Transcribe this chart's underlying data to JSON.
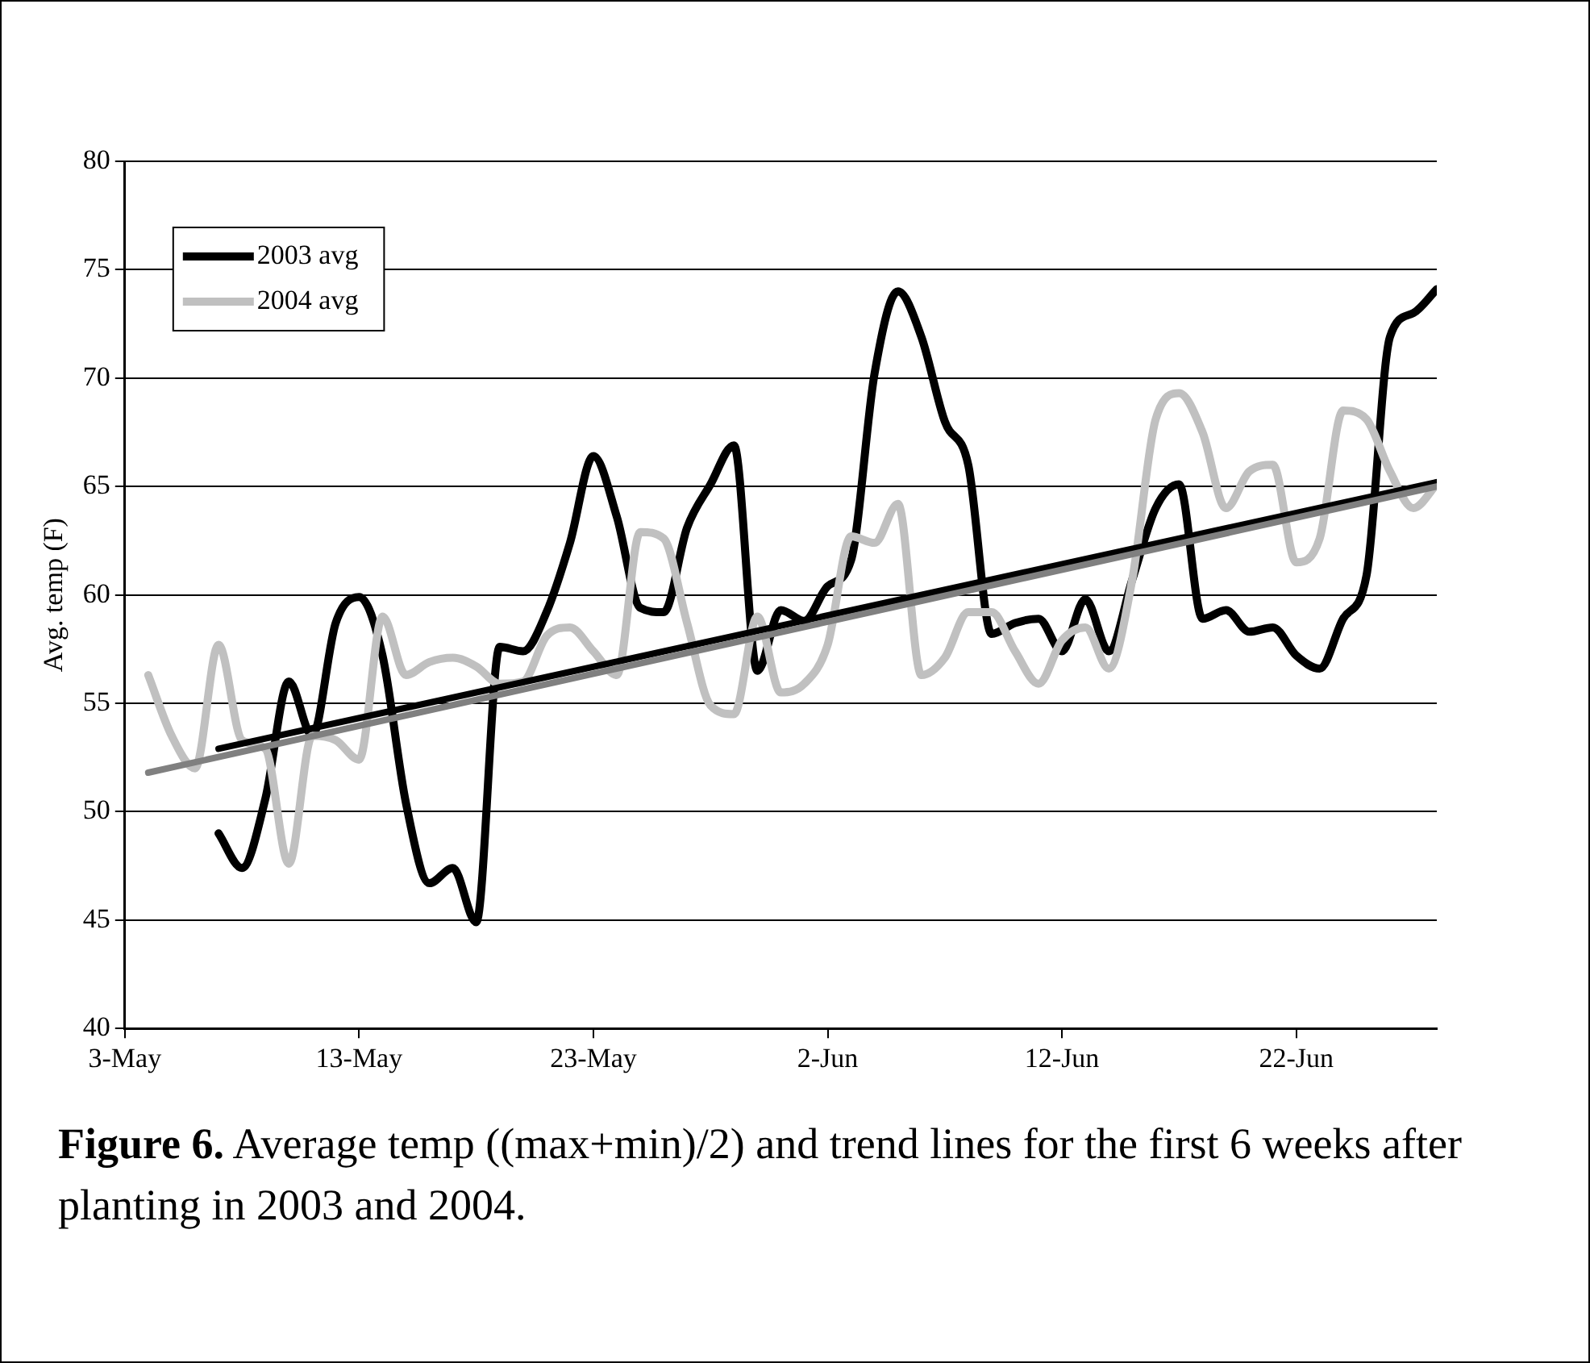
{
  "chart_data": {
    "type": "line",
    "ylabel": "Avg. temp (F)",
    "annotations": [
      "Figure 6. Average temp ((max+min)/2) and trend lines for the first 6 weeks after planting in 2003 and 2004."
    ],
    "xlim": [
      "--05-03",
      "--06-28"
    ],
    "xticks": [
      {
        "value": "--05-03",
        "label": "3-May"
      },
      {
        "value": "--05-13",
        "label": "13-May"
      },
      {
        "value": "--05-23",
        "label": "23-May"
      },
      {
        "value": "--06-02",
        "label": "2-Jun"
      },
      {
        "value": "--06-12",
        "label": "12-Jun"
      },
      {
        "value": "--06-22",
        "label": "22-Jun"
      }
    ],
    "ylim": [
      40,
      80
    ],
    "yticks": [
      40,
      45,
      50,
      55,
      60,
      65,
      70,
      75,
      80
    ],
    "grid": "y",
    "legend": "top left",
    "marker": "none",
    "line_style": "solid",
    "series": [
      {
        "name": "2003 avg",
        "color": "#000000",
        "x": [
          "--05-07",
          "--05-08",
          "--05-09",
          "--05-10",
          "--05-11",
          "--05-12",
          "--05-13",
          "--05-14",
          "--05-15",
          "--05-16",
          "--05-17",
          "--05-18",
          "--05-19",
          "--05-20",
          "--05-21",
          "--05-22",
          "--05-23",
          "--05-24",
          "--05-25",
          "--05-26",
          "--05-27",
          "--05-28",
          "--05-29",
          "--05-30",
          "--05-31",
          "--06-01",
          "--06-02",
          "--06-03",
          "--06-04",
          "--06-05",
          "--06-06",
          "--06-07",
          "--06-08",
          "--06-09",
          "--06-10",
          "--06-11",
          "--06-12",
          "--06-13",
          "--06-14",
          "--06-15",
          "--06-16",
          "--06-17",
          "--06-18",
          "--06-19",
          "--06-20",
          "--06-21",
          "--06-22",
          "--06-23",
          "--06-24",
          "--06-25",
          "--06-26",
          "--06-27",
          "--06-28"
        ],
        "values": [
          49.0,
          47.4,
          50.6,
          56.0,
          53.5,
          58.7,
          59.9,
          57.2,
          50.4,
          46.7,
          47.4,
          44.9,
          57.6,
          57.4,
          59.2,
          62.4,
          66.4,
          63.6,
          59.4,
          59.2,
          63.1,
          65.1,
          66.9,
          56.5,
          59.3,
          58.8,
          60.4,
          61.6,
          70.2,
          74.0,
          71.9,
          68.0,
          66.0,
          58.2,
          58.7,
          58.9,
          57.4,
          59.8,
          57.4,
          60.7,
          64.0,
          65.1,
          58.9,
          59.3,
          58.3,
          58.5,
          57.2,
          56.6,
          58.9,
          60.9,
          71.9,
          73.0,
          74.1
        ]
      },
      {
        "name": "2004 avg",
        "color": "#c0c0c0",
        "x": [
          "--05-04",
          "--05-05",
          "--05-06",
          "--05-07",
          "--05-08",
          "--05-09",
          "--05-10",
          "--05-11",
          "--05-12",
          "--05-13",
          "--05-14",
          "--05-15",
          "--05-16",
          "--05-17",
          "--05-18",
          "--05-19",
          "--05-20",
          "--05-21",
          "--05-22",
          "--05-23",
          "--05-24",
          "--05-25",
          "--05-26",
          "--05-27",
          "--05-28",
          "--05-29",
          "--05-30",
          "--05-31",
          "--06-01",
          "--06-02",
          "--06-03",
          "--06-04",
          "--06-05",
          "--06-06",
          "--06-07",
          "--06-08",
          "--06-09",
          "--06-10",
          "--06-11",
          "--06-12",
          "--06-13",
          "--06-14",
          "--06-15",
          "--06-16",
          "--06-17",
          "--06-18",
          "--06-19",
          "--06-20",
          "--06-21",
          "--06-22",
          "--06-23",
          "--06-24",
          "--06-25",
          "--06-26",
          "--06-27",
          "--06-28"
        ],
        "values": [
          56.3,
          53.5,
          52.0,
          57.7,
          53.3,
          52.9,
          47.6,
          53.5,
          53.3,
          52.4,
          59.0,
          56.3,
          56.9,
          57.1,
          56.7,
          55.9,
          56.0,
          58.1,
          58.5,
          57.4,
          56.3,
          62.9,
          62.6,
          58.7,
          54.9,
          54.5,
          59.0,
          55.5,
          55.9,
          57.7,
          62.7,
          62.4,
          64.2,
          56.3,
          57.1,
          59.2,
          59.2,
          57.4,
          55.9,
          57.9,
          58.5,
          56.6,
          60.7,
          68.1,
          69.3,
          67.5,
          64.0,
          65.7,
          66.0,
          61.5,
          62.6,
          68.5,
          68.1,
          65.7,
          64.0,
          65.1
        ]
      },
      {
        "type": "line",
        "color": "#000000",
        "x": [
          "--05-07",
          "--06-28"
        ],
        "values": [
          52.9,
          65.2
        ]
      },
      {
        "type": "line",
        "color": "#808080",
        "x": [
          "--05-04",
          "--06-28"
        ],
        "values": [
          51.8,
          65.0
        ]
      }
    ]
  }
}
